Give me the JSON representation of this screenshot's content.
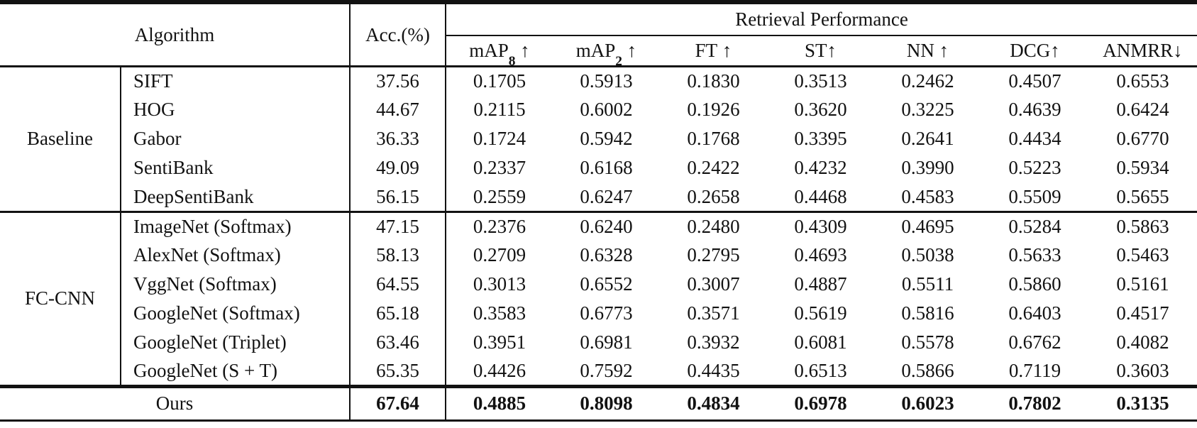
{
  "table": {
    "header": {
      "algorithm_label": "Algorithm",
      "acc_label": "Acc.(%)",
      "retrieval_label": "Retrieval Performance",
      "metrics": [
        {
          "name": "mAP",
          "sub": "8",
          "arrow": " ↑"
        },
        {
          "name": "mAP",
          "sub": "2",
          "arrow": " ↑"
        },
        {
          "name": "FT",
          "sub": "",
          "arrow": " ↑"
        },
        {
          "name": "ST",
          "sub": "",
          "arrow": "↑"
        },
        {
          "name": "NN",
          "sub": "",
          "arrow": " ↑"
        },
        {
          "name": "DCG",
          "sub": "",
          "arrow": "↑"
        },
        {
          "name": "ANMRR",
          "sub": "",
          "arrow": "↓"
        }
      ]
    },
    "groups": [
      {
        "label": "Baseline",
        "rows": [
          {
            "name": "SIFT",
            "acc": "37.56",
            "metrics": [
              "0.1705",
              "0.5913",
              "0.1830",
              "0.3513",
              "0.2462",
              "0.4507",
              "0.6553"
            ]
          },
          {
            "name": "HOG",
            "acc": "44.67",
            "metrics": [
              "0.2115",
              "0.6002",
              "0.1926",
              "0.3620",
              "0.3225",
              "0.4639",
              "0.6424"
            ]
          },
          {
            "name": "Gabor",
            "acc": "36.33",
            "metrics": [
              "0.1724",
              "0.5942",
              "0.1768",
              "0.3395",
              "0.2641",
              "0.4434",
              "0.6770"
            ]
          },
          {
            "name": "SentiBank",
            "acc": "49.09",
            "metrics": [
              "0.2337",
              "0.6168",
              "0.2422",
              "0.4232",
              "0.3990",
              "0.5223",
              "0.5934"
            ]
          },
          {
            "name": "DeepSentiBank",
            "acc": "56.15",
            "metrics": [
              "0.2559",
              "0.6247",
              "0.2658",
              "0.4468",
              "0.4583",
              "0.5509",
              "0.5655"
            ]
          }
        ]
      },
      {
        "label": "FC-CNN",
        "rows": [
          {
            "name": "ImageNet (Softmax)",
            "acc": "47.15",
            "metrics": [
              "0.2376",
              "0.6240",
              "0.2480",
              "0.4309",
              "0.4695",
              "0.5284",
              "0.5863"
            ]
          },
          {
            "name": "AlexNet (Softmax)",
            "acc": "58.13",
            "metrics": [
              "0.2709",
              "0.6328",
              "0.2795",
              "0.4693",
              "0.5038",
              "0.5633",
              "0.5463"
            ]
          },
          {
            "name": "VggNet (Softmax)",
            "acc": "64.55",
            "metrics": [
              "0.3013",
              "0.6552",
              "0.3007",
              "0.4887",
              "0.5511",
              "0.5860",
              "0.5161"
            ]
          },
          {
            "name": "GoogleNet (Softmax)",
            "acc": "65.18",
            "metrics": [
              "0.3583",
              "0.6773",
              "0.3571",
              "0.5619",
              "0.5816",
              "0.6403",
              "0.4517"
            ]
          },
          {
            "name": "GoogleNet (Triplet)",
            "acc": "63.46",
            "metrics": [
              "0.3951",
              "0.6981",
              "0.3932",
              "0.6081",
              "0.5578",
              "0.6762",
              "0.4082"
            ]
          },
          {
            "name": "GoogleNet (S + T)",
            "acc": "65.35",
            "metrics": [
              "0.4426",
              "0.7592",
              "0.4435",
              "0.6513",
              "0.5866",
              "0.7119",
              "0.3603"
            ]
          }
        ]
      }
    ],
    "ours": {
      "label": "Ours",
      "acc": "67.64",
      "metrics": [
        "0.4885",
        "0.8098",
        "0.4834",
        "0.6978",
        "0.6023",
        "0.7802",
        "0.3135"
      ]
    }
  }
}
